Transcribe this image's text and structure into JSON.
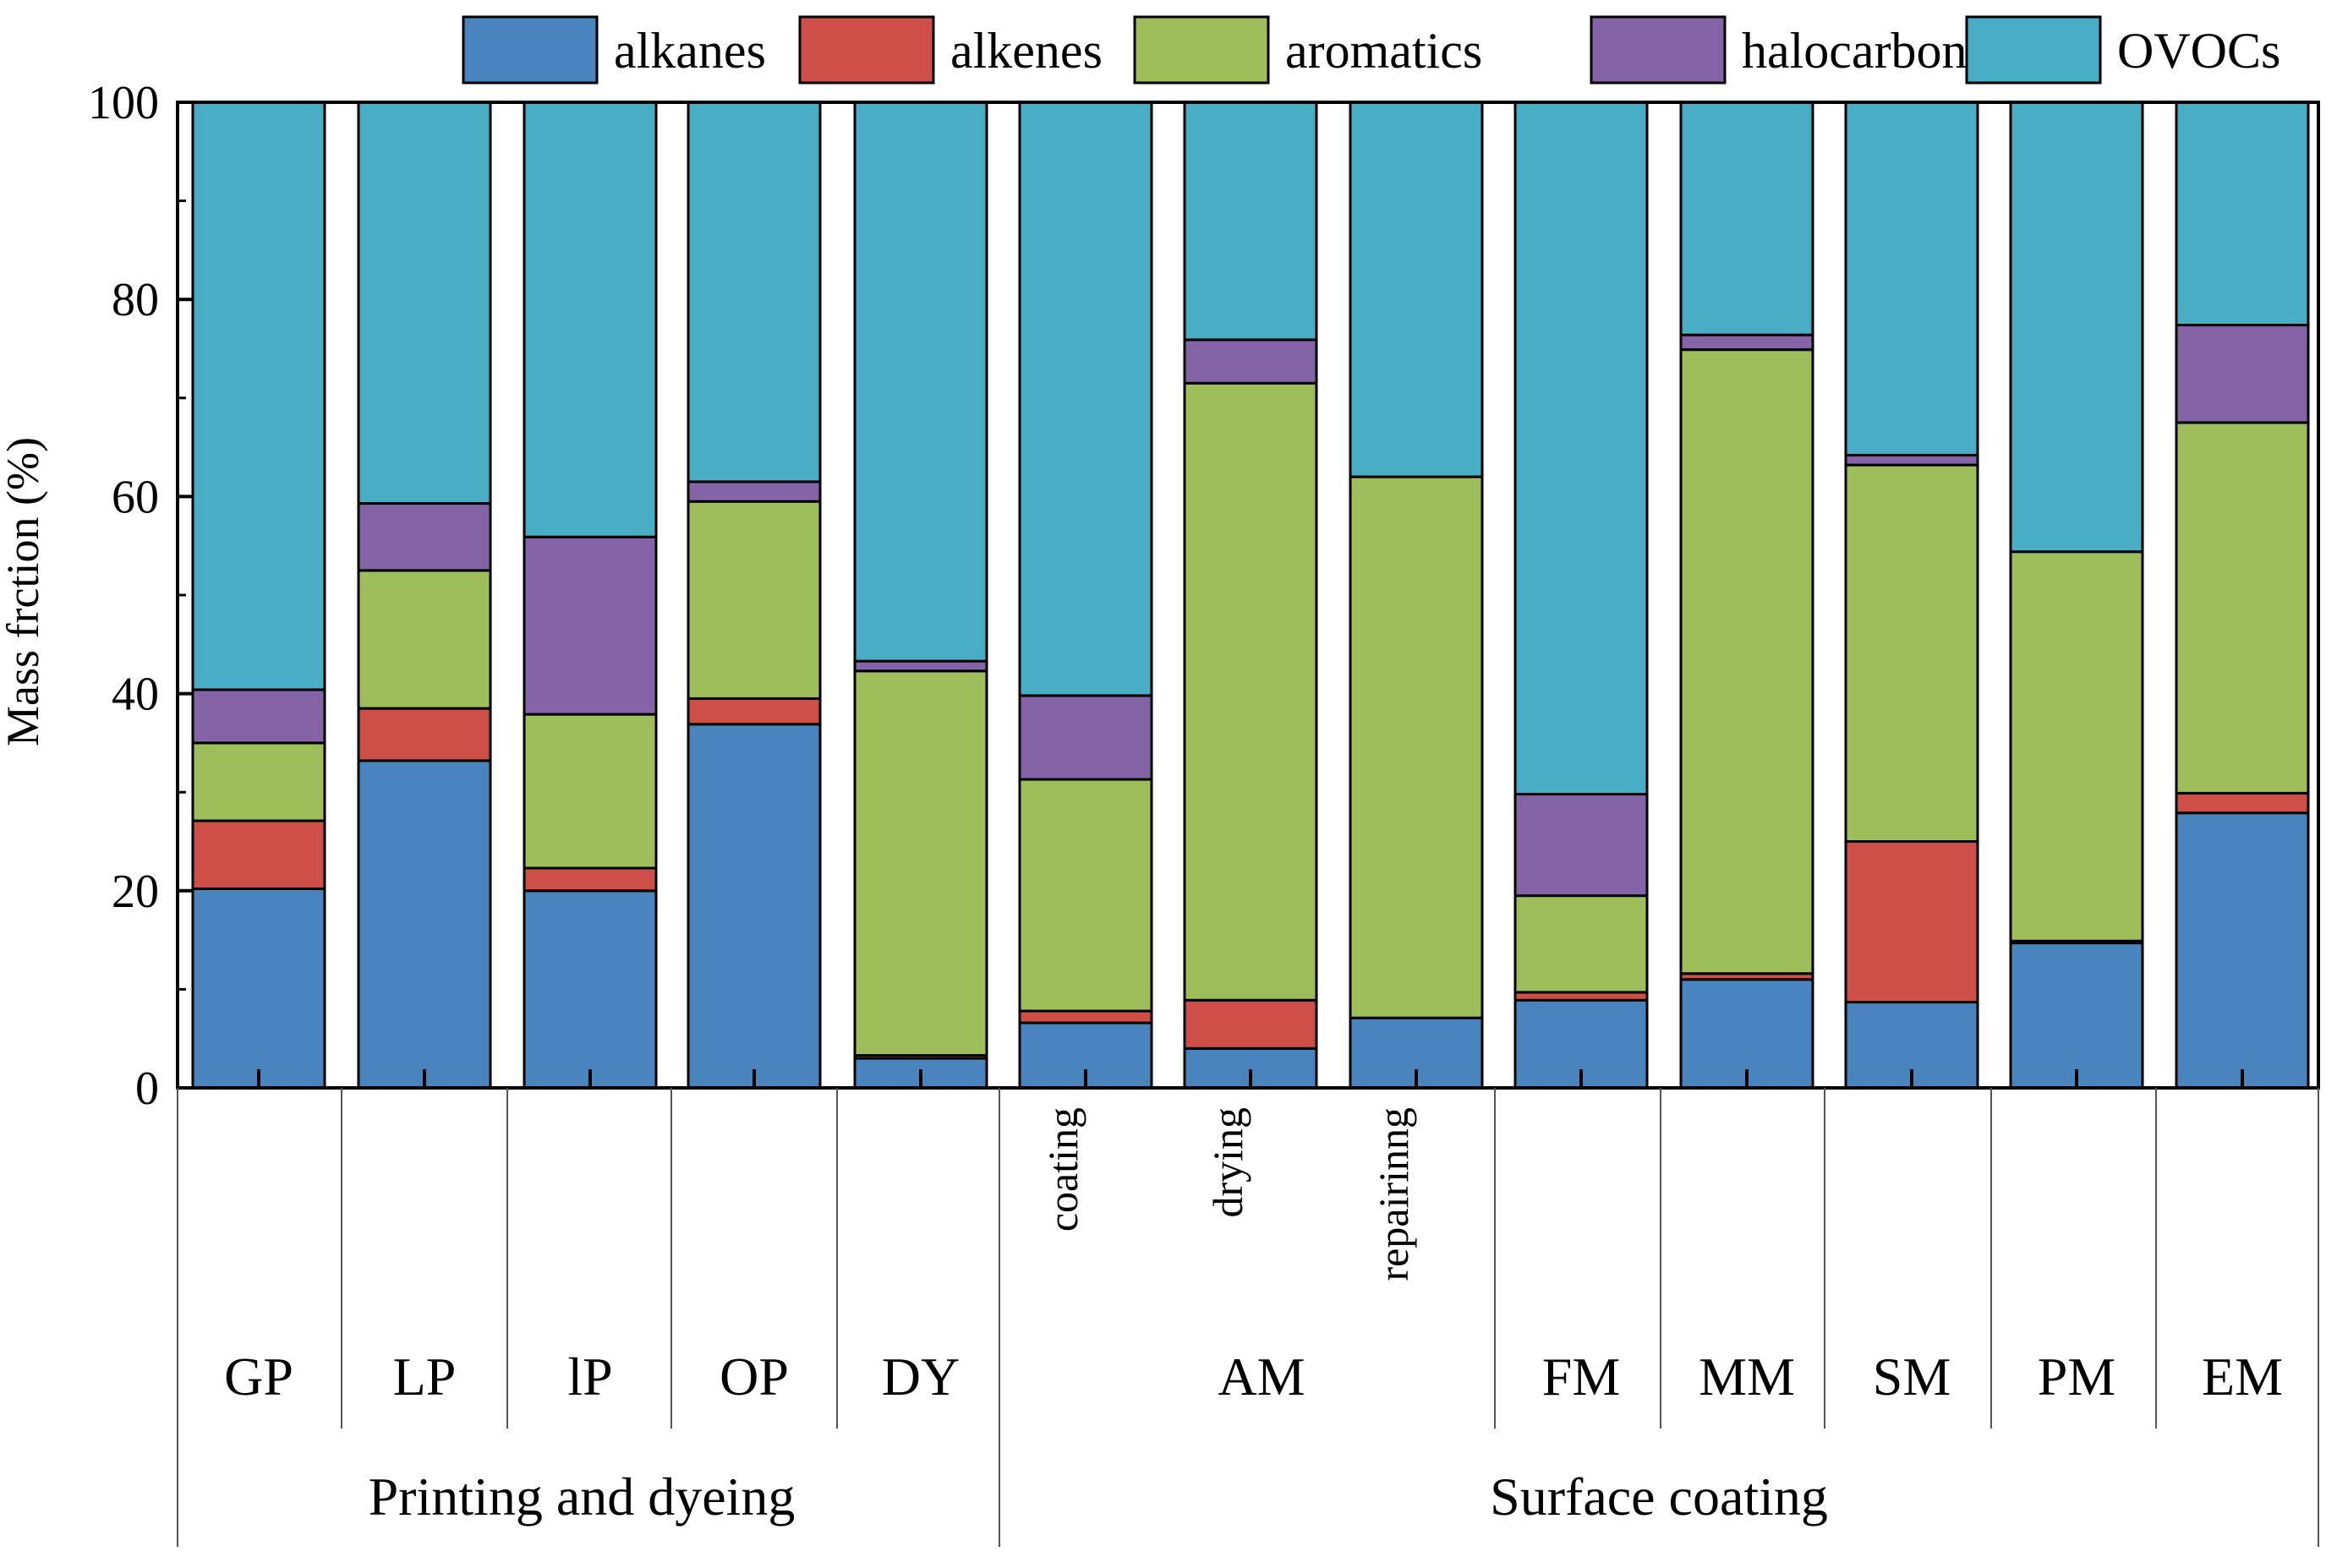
{
  "chart_data": {
    "type": "stacked-bar",
    "ylabel": "Mass frction (%)",
    "ylim": [
      0,
      100
    ],
    "yticks": [
      0,
      20,
      40,
      60,
      80,
      100
    ],
    "legend_position": "top",
    "bars": [
      {
        "label": "GP",
        "values": [
          20.2,
          6.9,
          7.9,
          5.4,
          59.6
        ]
      },
      {
        "label": "LP",
        "values": [
          33.2,
          5.3,
          14.0,
          6.8,
          40.7
        ]
      },
      {
        "label": "lP",
        "values": [
          20.0,
          2.3,
          15.6,
          18.0,
          44.1
        ]
      },
      {
        "label": "OP",
        "values": [
          36.9,
          2.6,
          20.0,
          2.0,
          38.5
        ]
      },
      {
        "label": "DY",
        "values": [
          3.0,
          0.3,
          39.0,
          1.0,
          56.7
        ]
      },
      {
        "label": "coating",
        "values": [
          6.6,
          1.2,
          23.5,
          8.5,
          60.2
        ]
      },
      {
        "label": "drying",
        "values": [
          4.0,
          4.9,
          62.6,
          4.4,
          24.1
        ]
      },
      {
        "label": "repairinng",
        "values": [
          7.1,
          0.0,
          54.9,
          0.0,
          38.0
        ]
      },
      {
        "label": "FM",
        "values": [
          8.9,
          0.8,
          9.8,
          10.3,
          70.2
        ]
      },
      {
        "label": "MM",
        "values": [
          11.0,
          0.6,
          63.3,
          1.5,
          23.6
        ]
      },
      {
        "label": "SM",
        "values": [
          8.7,
          16.3,
          38.2,
          1.0,
          35.8
        ]
      },
      {
        "label": "PM",
        "values": [
          14.7,
          0.2,
          39.5,
          0.0,
          45.6
        ]
      },
      {
        "label": "EM",
        "values": [
          27.9,
          2.0,
          37.6,
          9.9,
          22.6
        ]
      }
    ],
    "series": [
      {
        "name": "alkanes",
        "color": "#4a84be"
      },
      {
        "name": "alkenes",
        "color": "#cd4f47"
      },
      {
        "name": "aromatics",
        "color": "#9ebd5b"
      },
      {
        "name": "halocarbons",
        "color": "#8464a6"
      },
      {
        "name": "OVOCs",
        "color": "#49adc6"
      }
    ],
    "am_group_label": "AM",
    "groups": [
      "Printing and dyeing",
      "Surface coating"
    ]
  }
}
